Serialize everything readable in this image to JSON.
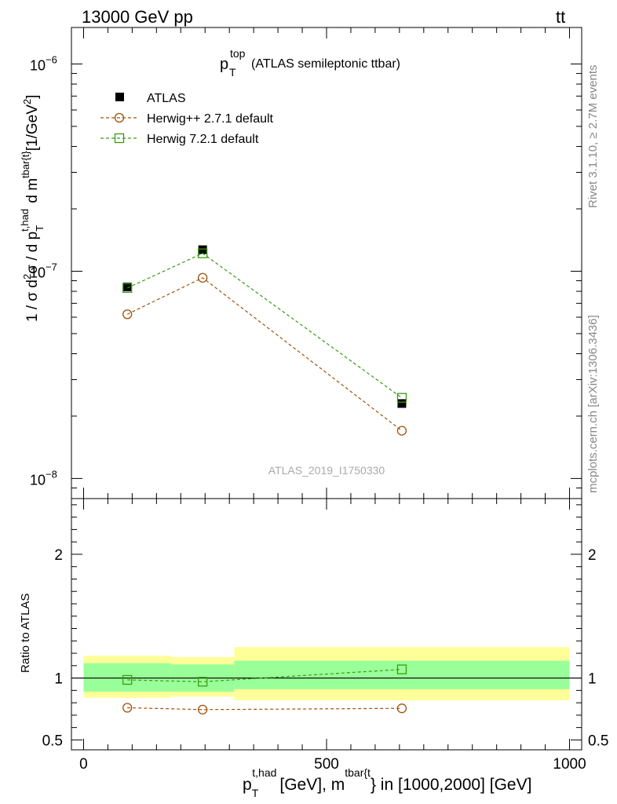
{
  "header": {
    "left": "13000 GeV pp",
    "right_main": "tt",
    "right_bar": "̄"
  },
  "side_labels": {
    "rivet": "Rivet 3.1.10, ≥ 2.7M events",
    "mcplots": "mcplots.cern.ch [arXiv:1306.3436]"
  },
  "chart_data": [
    {
      "type": "scatter",
      "title_main": "p",
      "title_sub": "T",
      "title_sup": "top",
      "title_rest": "(ATLAS semileptonic ttbar)",
      "watermark": "ATLAS_2019_I1750330",
      "ylabel": "1 / σ d²σ / d p_T^{t,had} d m^{tbar{t}} [1/GeV²]",
      "yscale": "log",
      "ylim": [
        8e-09,
        1.5e-06
      ],
      "xlim": [
        -25,
        1025
      ],
      "ytick_labels": [
        {
          "value": 1e-08,
          "base": "10",
          "exp": "−8"
        },
        {
          "value": 1e-07,
          "base": "10",
          "exp": "−7"
        },
        {
          "value": 1e-06,
          "base": "10",
          "exp": "−6"
        }
      ],
      "legend": {
        "placement": "top-left",
        "entries": [
          {
            "label": "ATLAS",
            "marker": "filled-square",
            "color": "#000000"
          },
          {
            "label": "Herwig++ 2.7.1 default",
            "marker": "open-circle",
            "color": "#a0520a"
          },
          {
            "label": "Herwig 7.2.1 default",
            "marker": "open-square",
            "color": "#3a9a12"
          }
        ]
      },
      "series": [
        {
          "name": "ATLAS",
          "x": [
            90,
            245,
            655
          ],
          "y": [
            8.4e-08,
            1.27e-07,
            2.3e-08
          ],
          "xerr": [
            [
              90,
              65
            ],
            [
              245,
              55
            ],
            [
              655,
              345
            ]
          ]
        },
        {
          "name": "Herwig++ 2.7.1 default",
          "x": [
            90,
            245,
            655
          ],
          "y": [
            6.2e-08,
            9.3e-08,
            1.7e-08
          ]
        },
        {
          "name": "Herwig 7.2.1 default",
          "x": [
            90,
            245,
            655
          ],
          "y": [
            8.3e-08,
            1.22e-07,
            2.45e-08
          ]
        }
      ]
    },
    {
      "type": "scatter",
      "ylabel": "Ratio to ATLAS",
      "xlabel_main": "p",
      "xlabel_sub": "T",
      "xlabel_sup": "t,had",
      "xlabel_mid": "[GeV], m",
      "xlabel_sup2": "tbar{t",
      "xlabel_rest": "} in [1000,2000] [GeV]",
      "ylim": [
        0.42,
        2.45
      ],
      "xlim": [
        -25,
        1025
      ],
      "yticks": [
        0.5,
        1,
        2
      ],
      "ytick_labels": [
        "0.5",
        "1",
        "2"
      ],
      "xticks": [
        0,
        500,
        1000
      ],
      "xtick_labels": [
        "0",
        "500",
        "1000"
      ],
      "bands": [
        {
          "x0": 0,
          "x1": 180,
          "stat_lo": 0.89,
          "stat_hi": 1.12,
          "tot_lo": 0.84,
          "tot_hi": 1.18
        },
        {
          "x0": 180,
          "x1": 310,
          "stat_lo": 0.89,
          "stat_hi": 1.11,
          "tot_lo": 0.85,
          "tot_hi": 1.17
        },
        {
          "x0": 310,
          "x1": 1000,
          "stat_lo": 0.91,
          "stat_hi": 1.14,
          "tot_lo": 0.82,
          "tot_hi": 1.25
        }
      ],
      "band_colors": {
        "stat": "#99ff99",
        "total": "#ffff99"
      },
      "series": [
        {
          "name": "Herwig++ 2.7.1 default",
          "x": [
            90,
            245,
            655
          ],
          "y": [
            0.76,
            0.745,
            0.755
          ]
        },
        {
          "name": "Herwig 7.2.1 default",
          "x": [
            90,
            245,
            655
          ],
          "y": [
            0.985,
            0.97,
            1.07
          ]
        }
      ]
    }
  ]
}
